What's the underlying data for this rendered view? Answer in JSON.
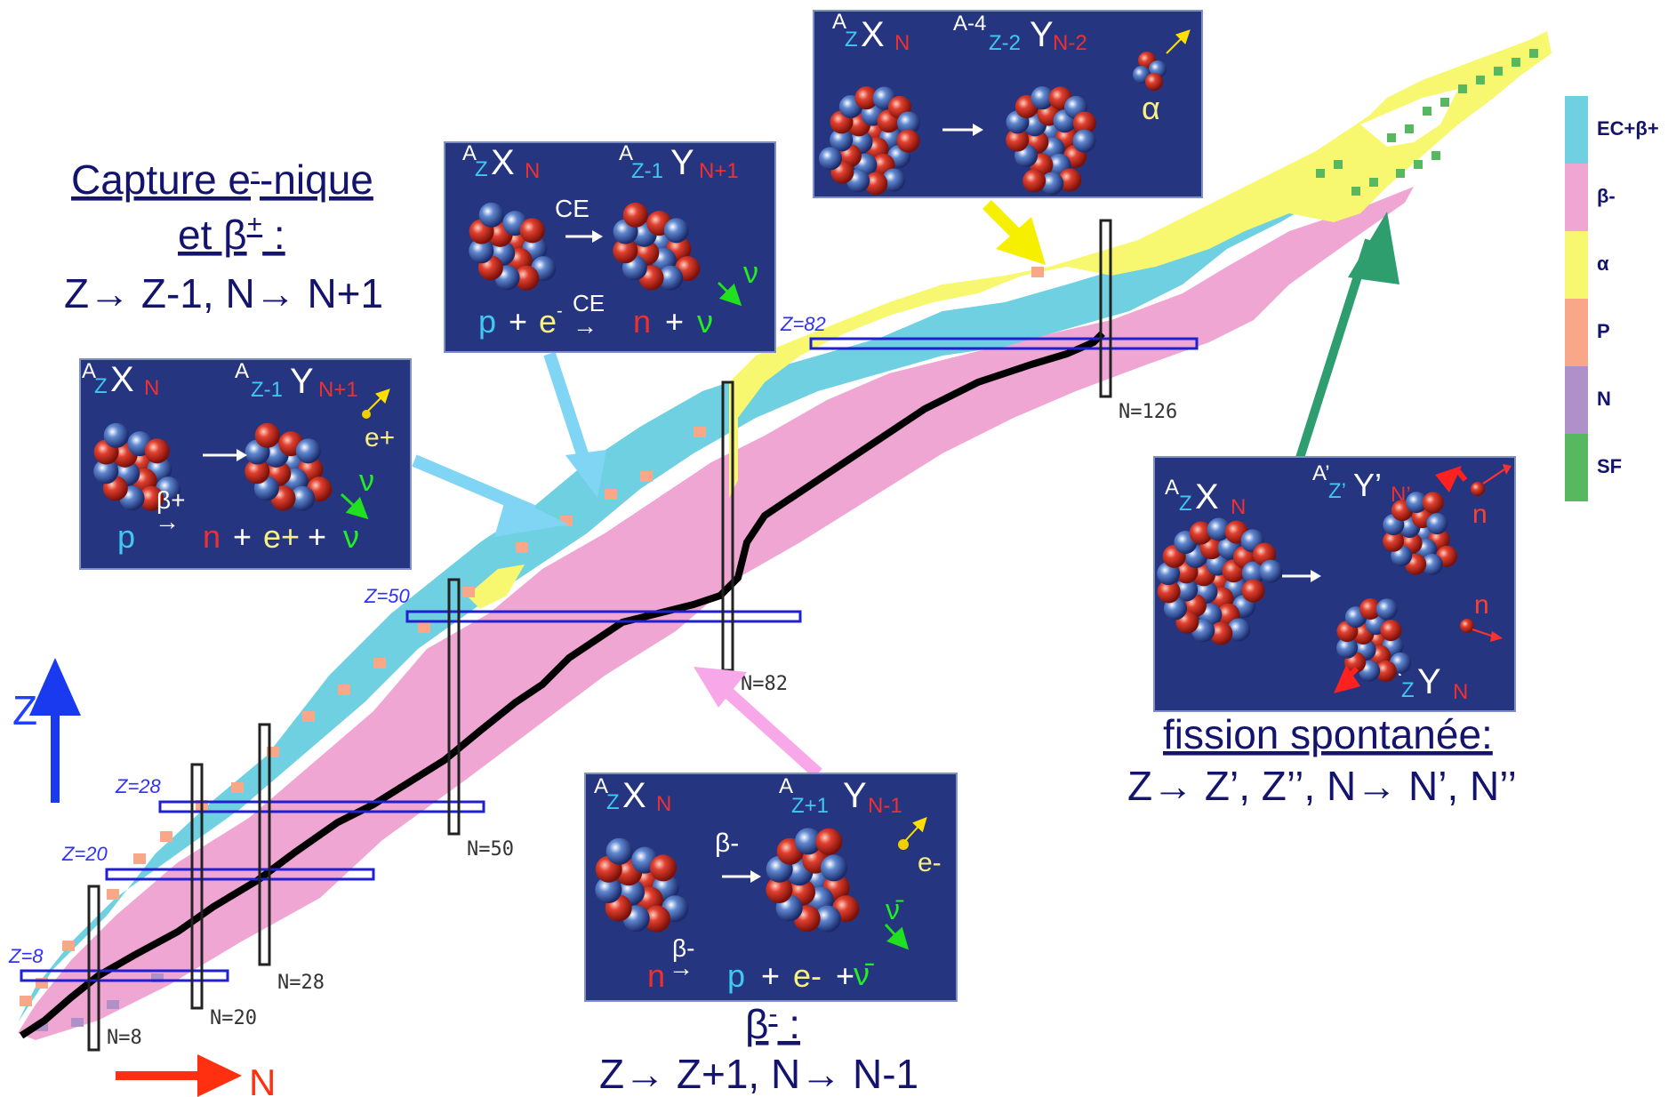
{
  "legend": {
    "items": [
      {
        "label": "EC+β+",
        "color": "#6ed0e0"
      },
      {
        "label": "β-",
        "color": "#f0a6d2"
      },
      {
        "label": "α",
        "color": "#f8f870"
      },
      {
        "label": "P",
        "color": "#f8a888"
      },
      {
        "label": "N",
        "color": "#b090c8"
      },
      {
        "label": "SF",
        "color": "#58b860"
      }
    ]
  },
  "magic": {
    "proton": [
      "Z=8",
      "Z=20",
      "Z=28",
      "Z=50",
      "Z=82"
    ],
    "neutron": [
      "N=8",
      "N=20",
      "N=28",
      "N=50",
      "N=82",
      "N=126"
    ]
  },
  "axes": {
    "z_label": "Z",
    "n_label": "N"
  },
  "ec_caption": {
    "line1": "Capture e",
    "line1_sup": "-",
    "line1_rest": "-nique",
    "line2": "et β",
    "line2_sup": "+",
    "line2_rest": " :",
    "line3": "Z→ Z-1, N→ N+1"
  },
  "beta_minus_caption": {
    "line1": "β",
    "line1_sup": "-",
    "line1_rest": " :",
    "line2": "Z→ Z+1, N→ N-1"
  },
  "fission_caption": {
    "line1": "fission spontanée:",
    "line2": "Z→ Z’, Z’’, N→ N’, N’’"
  },
  "panels": {
    "ec": {
      "parent": {
        "A": "A",
        "Z": "Z",
        "sym": "X",
        "N": "N"
      },
      "daughter": {
        "A": "A",
        "Z": "Z-1",
        "sym": "Y",
        "N": "N+1"
      },
      "arrow_label": "CE",
      "eq_p": "p",
      "eq_plus": "+",
      "eq_e": "e",
      "eq_esup": "-",
      "eq_label": "CE",
      "eq_n": "n",
      "eq_plus2": "+",
      "eq_nu": "ν",
      "nu_label": "ν"
    },
    "beta_plus": {
      "parent": {
        "A": "A",
        "Z": "Z",
        "sym": "X",
        "N": "N"
      },
      "daughter": {
        "A": "A",
        "Z": "Z-1",
        "sym": "Y",
        "N": "N+1"
      },
      "arrow_label": "β+",
      "positron": "e+",
      "nu_label": "ν",
      "eq_p": "p",
      "eq_n": "n",
      "eq_plus": "+",
      "eq_e": "e+",
      "eq_plus2": "+",
      "eq_nu": "ν"
    },
    "alpha": {
      "parent": {
        "A": "A",
        "Z": "Z",
        "sym": "X",
        "N": "N"
      },
      "daughter": {
        "A": "A-4",
        "Z": "Z-2",
        "sym": "Y",
        "N": "N-2"
      },
      "alpha_label": "α"
    },
    "beta_minus": {
      "parent": {
        "A": "A",
        "Z": "Z",
        "sym": "X",
        "N": "N"
      },
      "daughter": {
        "A": "A",
        "Z": "Z+1",
        "sym": "Y",
        "N": "N-1"
      },
      "arrow_label": "β-",
      "electron": "e-",
      "nubar": "ν̄",
      "eq_label": "β-",
      "eq_n": "n",
      "eq_p": "p",
      "eq_plus": "+",
      "eq_e": "e-",
      "eq_plus2": "+",
      "eq_nubar": "ν̄"
    },
    "fission": {
      "parent": {
        "A": "A",
        "Z": "Z",
        "sym": "X",
        "N": "N"
      },
      "frag1": {
        "A": "A’",
        "Z": "Z’",
        "sym": "Y’",
        "N": "N’"
      },
      "frag2": {
        "A": "A",
        "Z": "Z",
        "sym": "Y",
        "N": "N"
      },
      "neutron1": "n",
      "neutron2": "n"
    }
  }
}
